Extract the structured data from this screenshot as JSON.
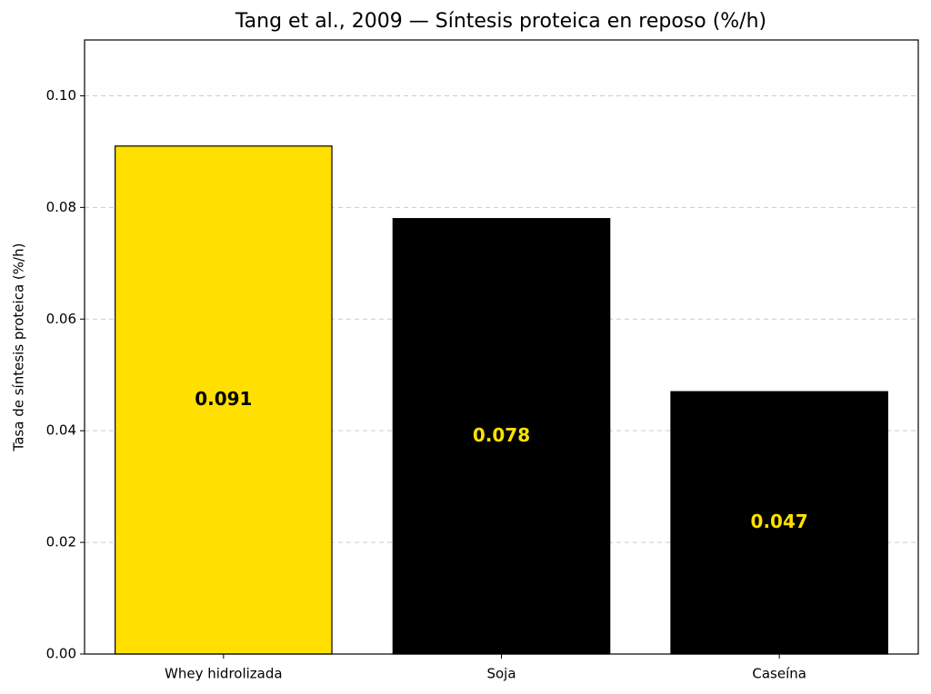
{
  "chart_data": {
    "type": "bar",
    "title": "Tang et al., 2009 — Síntesis proteica en reposo (%/h)",
    "ylabel": "Tasa de síntesis proteica (%/h)",
    "categories": [
      "Whey hidrolizada",
      "Soja",
      "Caseína"
    ],
    "values": [
      0.091,
      0.078,
      0.047
    ],
    "colors": [
      "#ffe000",
      "#000000",
      "#000000"
    ],
    "label_colors": [
      "#000000",
      "#ffe000",
      "#ffe000"
    ],
    "edge_color": "#000000",
    "ylim": [
      0,
      0.11
    ],
    "yticks": [
      {
        "value": 0,
        "label": "0.00"
      },
      {
        "value": 0.02,
        "label": "0.02"
      },
      {
        "value": 0.04,
        "label": "0.04"
      },
      {
        "value": 0.06,
        "label": "0.06"
      },
      {
        "value": 0.08,
        "label": "0.08"
      },
      {
        "value": 0.1,
        "label": "0.10"
      }
    ],
    "grid": true
  }
}
